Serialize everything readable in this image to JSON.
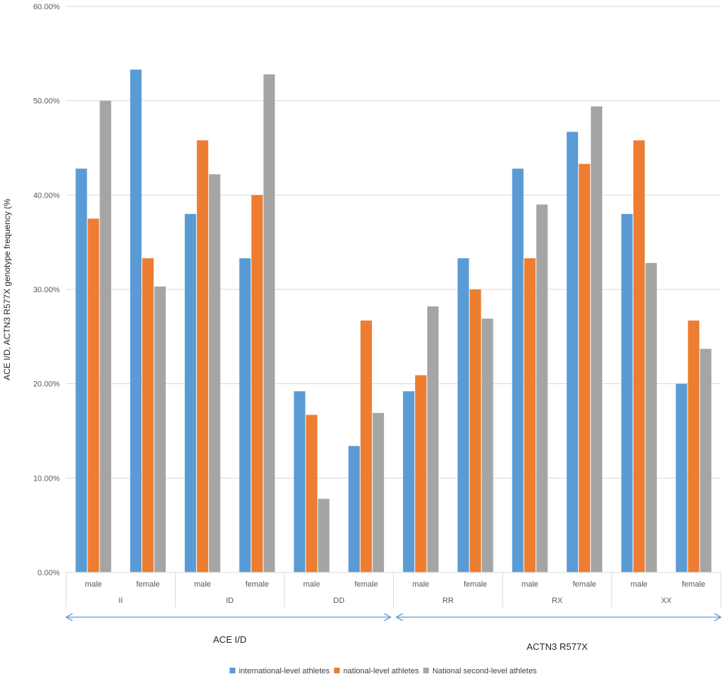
{
  "chart_data": {
    "type": "bar",
    "title": "",
    "ylabel": "ACE I/D, ACTN3 R577X genotype frequency (%",
    "xlabel": "",
    "ylim": [
      0,
      60
    ],
    "ytick_labels": [
      "0.00%",
      "10.00%",
      "20.00%",
      "30.00%",
      "40.00%",
      "50.00%",
      "60.00%"
    ],
    "yticks": [
      0,
      10,
      20,
      30,
      40,
      50,
      60
    ],
    "grid": true,
    "legend_position": "bottom",
    "categories": [
      "male",
      "female",
      "male",
      "female",
      "male",
      "female",
      "male",
      "female",
      "male",
      "female",
      "male",
      "female"
    ],
    "groups": [
      "II",
      "ID",
      "DD",
      "RR",
      "RX",
      "XX"
    ],
    "super_groups": [
      {
        "label": "ACE I/D",
        "groups": [
          "II",
          "ID",
          "DD"
        ]
      },
      {
        "label": "ACTN3 R577X",
        "groups": [
          "RR",
          "RX",
          "XX"
        ]
      }
    ],
    "series": [
      {
        "name": "international-level athletes",
        "color": "#5B9BD5",
        "values": [
          42.8,
          53.3,
          38.0,
          33.3,
          19.2,
          13.4,
          19.2,
          33.3,
          42.8,
          46.7,
          38.0,
          20.0
        ]
      },
      {
        "name": "national-level athletes",
        "color": "#ED7D31",
        "values": [
          37.5,
          33.3,
          45.8,
          40.0,
          16.7,
          26.7,
          20.9,
          30.0,
          33.3,
          43.3,
          45.8,
          26.7
        ]
      },
      {
        "name": "National second-level athletes",
        "color": "#A5A5A5",
        "values": [
          50.0,
          30.3,
          42.2,
          52.8,
          7.8,
          16.9,
          28.2,
          26.9,
          39.0,
          49.4,
          32.8,
          23.7
        ]
      }
    ]
  }
}
